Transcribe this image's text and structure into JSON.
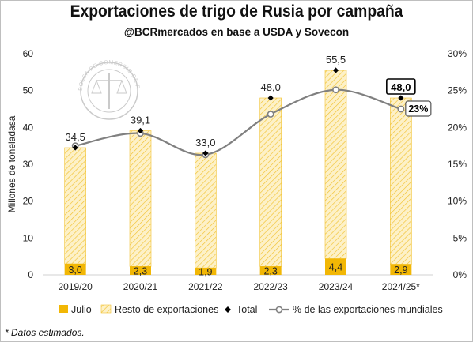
{
  "chart_data": {
    "type": "bar",
    "title": "Exportaciones de trigo de Rusia por campaña",
    "subtitle": "@BCRmercados en base a USDA y Sovecon",
    "ylabel": "Millones de toneladasa",
    "ylim": [
      0,
      60
    ],
    "yticks": [
      "0",
      "10",
      "20",
      "30",
      "40",
      "50",
      "60"
    ],
    "y2lim": [
      0,
      30
    ],
    "y2ticks": [
      "0%",
      "5%",
      "10%",
      "15%",
      "20%",
      "25%",
      "30%"
    ],
    "categories": [
      "2019/20",
      "2020/21",
      "2021/22",
      "2022/23",
      "2023/24",
      "2024/25*"
    ],
    "series": [
      {
        "name": "Julio",
        "values": [
          3.0,
          2.3,
          1.9,
          2.3,
          4.4,
          2.9
        ],
        "labels": [
          "3,0",
          "2,3",
          "1,9",
          "2,3",
          "4,4",
          "2,9"
        ],
        "color": "#F2B705"
      },
      {
        "name": "Resto de exportaciones",
        "values": [
          31.5,
          36.8,
          31.1,
          45.7,
          51.1,
          45.1
        ],
        "color": "#FBE6A2"
      },
      {
        "name": "Total",
        "values": [
          34.5,
          39.1,
          33.0,
          48.0,
          55.5,
          48.0
        ],
        "labels": [
          "34,5",
          "39,1",
          "33,0",
          "48,0",
          "55,5",
          "48,0"
        ]
      },
      {
        "name": "% de las exportaciones mundiales",
        "values": [
          17.5,
          19.2,
          16.3,
          21.8,
          25.1,
          22.5
        ],
        "labels": [
          "",
          "",
          "",
          "",
          "",
          "23%"
        ],
        "color": "#808080"
      }
    ],
    "legend_position": "bottom",
    "grid": false
  },
  "watermark": "BOLSA DE COMERCIO DE ROSARIO",
  "footnote": "* Datos estimados."
}
